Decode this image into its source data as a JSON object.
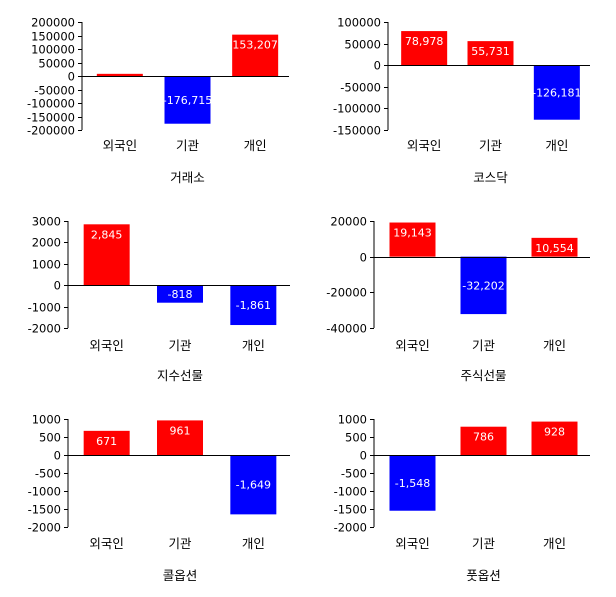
{
  "colors": {
    "positive": "#ff0000",
    "negative": "#0000ff",
    "axis": "#000000",
    "label": "#ffffff"
  },
  "chart_data": [
    {
      "type": "bar",
      "title": "거래소",
      "categories": [
        "외국인",
        "기관",
        "개인"
      ],
      "values": [
        8000,
        -176715,
        153207
      ],
      "data_labels": [
        "",
        "-176,715",
        "153,207"
      ],
      "ylim": [
        -200000,
        200000
      ],
      "yticks": [
        200000,
        150000,
        100000,
        50000,
        0,
        -50000,
        -100000,
        -150000,
        -200000
      ],
      "ytick_labels": [
        "200000",
        "150000",
        "100000",
        "50000",
        "0",
        "-50000",
        "-100000",
        "-150000",
        "-200000"
      ],
      "grid": false
    },
    {
      "type": "bar",
      "title": "코스닥",
      "categories": [
        "외국인",
        "기관",
        "개인"
      ],
      "values": [
        78978,
        55731,
        -126181
      ],
      "data_labels": [
        "78,978",
        "55,731",
        "-126,181"
      ],
      "ylim": [
        -150000,
        100000
      ],
      "yticks": [
        100000,
        50000,
        0,
        -50000,
        -100000,
        -150000
      ],
      "ytick_labels": [
        "100000",
        "50000",
        "0",
        "-50000",
        "-100000",
        "-150000"
      ],
      "grid": false
    },
    {
      "type": "bar",
      "title": "지수선물",
      "categories": [
        "외국인",
        "기관",
        "개인"
      ],
      "values": [
        2845,
        -818,
        -1861
      ],
      "data_labels": [
        "2,845",
        "-818",
        "-1,861"
      ],
      "ylim": [
        -2000,
        3000
      ],
      "yticks": [
        3000,
        2000,
        1000,
        0,
        -1000,
        -2000
      ],
      "ytick_labels": [
        "3000",
        "2000",
        "1000",
        "0",
        "-1000",
        "-2000"
      ],
      "grid": false
    },
    {
      "type": "bar",
      "title": "주식선물",
      "categories": [
        "외국인",
        "기관",
        "개인"
      ],
      "values": [
        19143,
        -32202,
        10554
      ],
      "data_labels": [
        "19,143",
        "-32,202",
        "10,554"
      ],
      "ylim": [
        -40000,
        20000
      ],
      "yticks": [
        20000,
        0,
        -20000,
        -40000
      ],
      "ytick_labels": [
        "20000",
        "0",
        "-20000",
        "-40000"
      ],
      "grid": false
    },
    {
      "type": "bar",
      "title": "콜옵션",
      "categories": [
        "외국인",
        "기관",
        "개인"
      ],
      "values": [
        671,
        961,
        -1649
      ],
      "data_labels": [
        "671",
        "961",
        "-1,649"
      ],
      "ylim": [
        -2000,
        1000
      ],
      "yticks": [
        1000,
        500,
        0,
        -500,
        -1000,
        -1500,
        -2000
      ],
      "ytick_labels": [
        "1000",
        "500",
        "0",
        "-500",
        "-1000",
        "-1500",
        "-2000"
      ],
      "grid": false
    },
    {
      "type": "bar",
      "title": "풋옵션",
      "categories": [
        "외국인",
        "기관",
        "개인"
      ],
      "values": [
        -1548,
        786,
        928
      ],
      "data_labels": [
        "-1,548",
        "786",
        "928"
      ],
      "ylim": [
        -2000,
        1000
      ],
      "yticks": [
        1000,
        500,
        0,
        -500,
        -1000,
        -1500,
        -2000
      ],
      "ytick_labels": [
        "1000",
        "500",
        "0",
        "-500",
        "-1000",
        "-1500",
        "-2000"
      ],
      "grid": false
    }
  ]
}
